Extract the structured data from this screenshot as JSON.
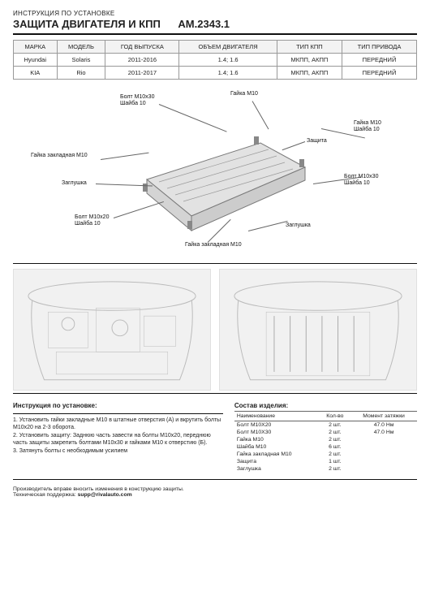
{
  "header": {
    "line1": "ИНСТРУКЦИЯ ПО УСТАНОВКЕ",
    "line2": "ЗАЩИТА ДВИГАТЕЛЯ И КПП",
    "partnum": "AM.2343.1"
  },
  "spec_table": {
    "columns": [
      "МАРКА",
      "МОДЕЛЬ",
      "ГОД ВЫПУСКА",
      "ОБЪЕМ ДВИГАТЕЛЯ",
      "ТИП КПП",
      "ТИП ПРИВОДА"
    ],
    "rows": [
      [
        "Hyundai",
        "Solaris",
        "2011-2016",
        "1.4; 1.6",
        "МКПП, АКПП",
        "ПЕРЕДНИЙ"
      ],
      [
        "KIA",
        "Rio",
        "2011-2017",
        "1.4; 1.6",
        "МКПП, АКПП",
        "ПЕРЕДНИЙ"
      ]
    ]
  },
  "callouts": {
    "c1a": "Болт М10х30",
    "c1b": "Шайба 10",
    "c2": "Гайка М10",
    "c3a": "Гайка М10",
    "c3b": "Шайба 10",
    "c4": "Защита",
    "c5": "Гайка закладная М10",
    "c6": "Заглушка",
    "c7a": "Болт М10х30",
    "c7b": "Шайба 10",
    "c8a": "Болт М10х20",
    "c8b": "Шайба 10",
    "c9": "Заглушка",
    "c10": "Гайка закладная М10"
  },
  "instructions": {
    "title": "Инструкция по установке:",
    "step1": "1. Установить гайки закладные М10 в штатные отверстия (А) и вкрутить болты М10х20 на 2-3 оборота.",
    "step2": "2. Установить защиту: Заднюю часть завести на болты М10х20, переднюю часть защиты закрепить болтами М10х30 и гайками М10 к отверстию (Б).",
    "step3": "3. Затянуть болты с необходимым усилием"
  },
  "bom": {
    "title": "Состав изделия:",
    "columns": [
      "Наименование",
      "Кол-во",
      "Момент затяжки"
    ],
    "rows": [
      [
        "Болт М10Х20",
        "2 шт.",
        "47.0 Нм"
      ],
      [
        "Болт М10Х30",
        "2 шт.",
        "47.0 Нм"
      ],
      [
        "Гайка М10",
        "2 шт.",
        ""
      ],
      [
        "Шайба М10",
        "6 шт.",
        ""
      ],
      [
        "Гайка закладная М10",
        "2 шт.",
        ""
      ],
      [
        "Защита",
        "1 шт.",
        ""
      ],
      [
        "Заглушка",
        "2 шт.",
        ""
      ]
    ]
  },
  "footer": {
    "note": "Производитель вправе вносить изменения в конструкцию защиты.",
    "support_label": "Техническая поддержка:",
    "support_email": "supp@rivalauto.com"
  },
  "colors": {
    "text": "#222222",
    "rule": "#111111",
    "cell_border": "#999999",
    "header_bg": "#f3f3f3",
    "diagram_bg": "#f1f1f1",
    "plate_fill": "#e2e2e2",
    "plate_stroke": "#7a7a7a"
  }
}
